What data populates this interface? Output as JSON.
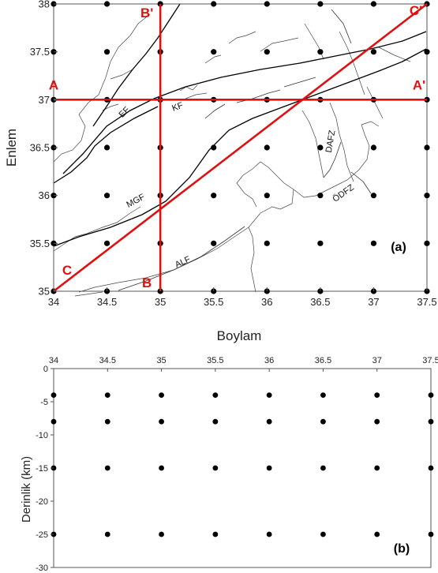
{
  "chart_data": [
    {
      "type": "scatter",
      "panel_label": "(a)",
      "xlabel": "Boylam",
      "ylabel": "Enlem",
      "xlim": [
        34,
        37.5
      ],
      "ylim": [
        35,
        38
      ],
      "x_ticks": [
        "34",
        "34.5",
        "35",
        "35.5",
        "36",
        "36.5",
        "37",
        "37.5"
      ],
      "y_ticks": [
        "35",
        "35.5",
        "36",
        "36.5",
        "37",
        "37.5",
        "38"
      ],
      "grid_x": [
        34,
        34.5,
        35,
        35.5,
        36,
        36.5,
        37,
        37.5
      ],
      "grid_y": [
        35,
        35.5,
        36,
        36.5,
        37,
        37.5,
        38
      ],
      "sections": [
        {
          "name": "A-A'",
          "start_label": "A",
          "end_label": "A'",
          "start": [
            34,
            37
          ],
          "end": [
            37.5,
            37
          ]
        },
        {
          "name": "B-B'",
          "start_label": "B",
          "end_label": "B'",
          "start": [
            35,
            35
          ],
          "end": [
            35,
            38
          ]
        },
        {
          "name": "C-C'",
          "start_label": "C",
          "end_label": "C'",
          "start": [
            34,
            35
          ],
          "end": [
            37.5,
            38
          ]
        }
      ],
      "fault_labels": [
        "EF",
        "KF",
        "MGF",
        "ALF",
        "DAFZ",
        "ÖDFZ"
      ],
      "section_color": "#e01010"
    },
    {
      "type": "scatter",
      "panel_label": "(b)",
      "ylabel": "Derinlik (km)",
      "xlim": [
        34,
        37.5
      ],
      "ylim": [
        -30,
        0
      ],
      "x_ticks": [
        "34",
        "34.5",
        "35",
        "35.5",
        "36",
        "36.5",
        "37",
        "37.5"
      ],
      "y_ticks": [
        "0",
        "-5",
        "-10",
        "-15",
        "-20",
        "-25",
        "-30"
      ],
      "grid_x": [
        34,
        34.5,
        35,
        35.5,
        36,
        36.5,
        37,
        37.5
      ],
      "depths": [
        -4,
        -8,
        -15,
        -25
      ]
    }
  ]
}
